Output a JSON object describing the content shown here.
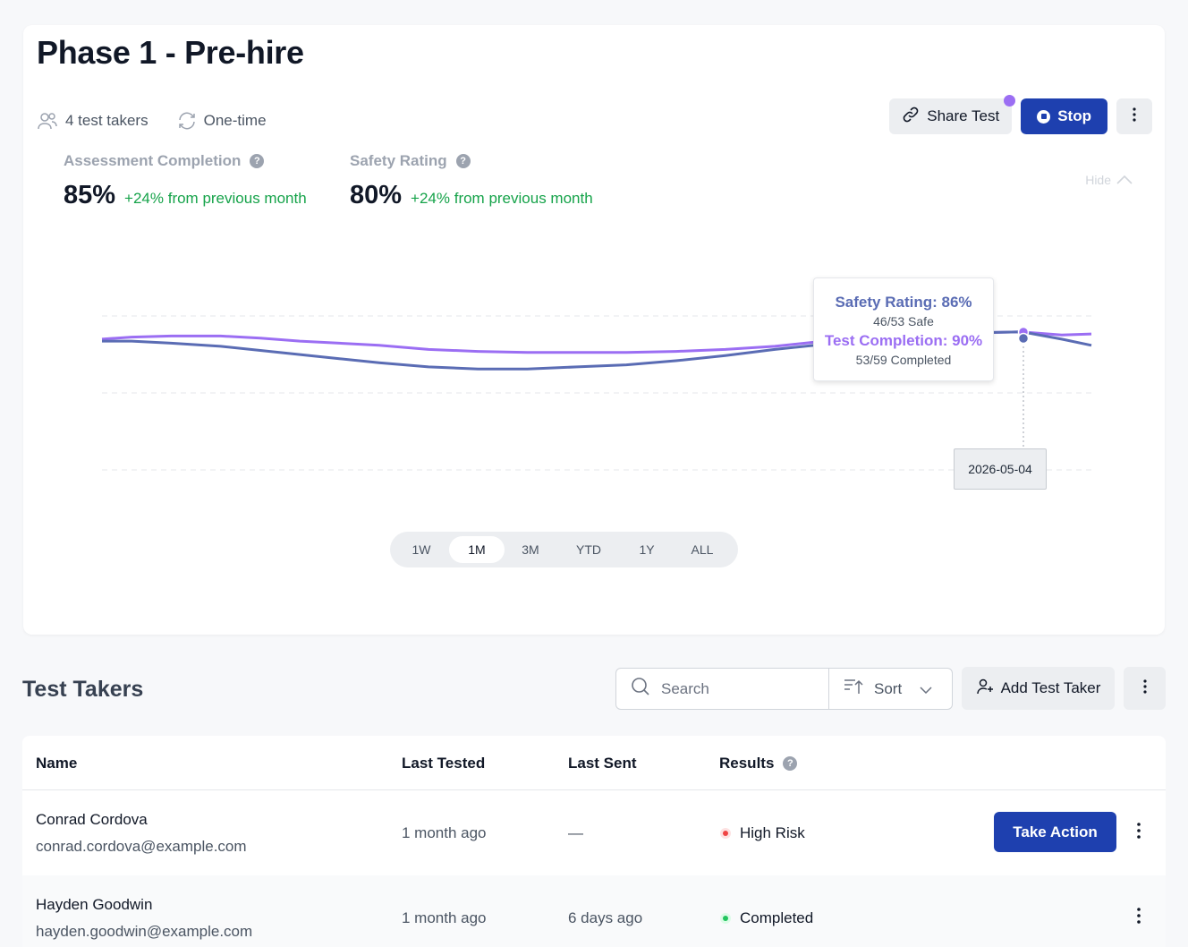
{
  "header": {
    "title": "Phase 1 - Pre-hire",
    "test_takers": "4 test takers",
    "frequency": "One-time"
  },
  "actions": {
    "share_label": "Share Test",
    "stop_label": "Stop"
  },
  "stats": [
    {
      "label": "Assessment Completion",
      "value": "85%",
      "change": "+24% from previous month"
    },
    {
      "label": "Safety Rating",
      "value": "80%",
      "change": "+24% from previous month"
    }
  ],
  "hide_label": "Hide",
  "colors": {
    "safety": "#5a6cb4",
    "completion": "#9b6ef3",
    "primary": "#1e40af",
    "positive": "#16a34a",
    "risk": "#ef4444",
    "done": "#22c55e"
  },
  "chart_data": {
    "type": "line",
    "grid": true,
    "x_range": [
      "2026-04-04",
      "2026-05-07"
    ],
    "series": [
      {
        "key": "completion",
        "values": [
          [
            0,
            89.6
          ],
          [
            3,
            89.8
          ],
          [
            7,
            89.9
          ],
          [
            12,
            89.9
          ],
          [
            16,
            89.7
          ],
          [
            20,
            89.4
          ],
          [
            24,
            89.2
          ],
          [
            28,
            89.0
          ],
          [
            33,
            88.6
          ],
          [
            38,
            88.4
          ],
          [
            43,
            88.3
          ],
          [
            48,
            88.3
          ],
          [
            53,
            88.3
          ],
          [
            58,
            88.4
          ],
          [
            63,
            88.6
          ],
          [
            68,
            88.9
          ],
          [
            73,
            89.4
          ],
          [
            78,
            89.8
          ],
          [
            83,
            90.1
          ],
          [
            88,
            90.2
          ],
          [
            93,
            90.3
          ],
          [
            97,
            90.0
          ],
          [
            100,
            90.1
          ]
        ]
      },
      {
        "key": "safety",
        "values": [
          [
            0,
            89.4
          ],
          [
            3,
            89.4
          ],
          [
            7,
            89.2
          ],
          [
            12,
            88.9
          ],
          [
            16,
            88.5
          ],
          [
            20,
            88.1
          ],
          [
            24,
            87.7
          ],
          [
            28,
            87.3
          ],
          [
            33,
            86.9
          ],
          [
            38,
            86.7
          ],
          [
            43,
            86.7
          ],
          [
            48,
            86.9
          ],
          [
            53,
            87.1
          ],
          [
            58,
            87.5
          ],
          [
            63,
            88.0
          ],
          [
            68,
            88.6
          ],
          [
            73,
            89.1
          ],
          [
            78,
            89.6
          ],
          [
            83,
            90.0
          ],
          [
            88,
            90.2
          ],
          [
            93,
            90.3
          ],
          [
            97,
            89.6
          ],
          [
            100,
            89.0
          ]
        ]
      }
    ],
    "tooltip": {
      "date": "2026-05-04",
      "safety_label": "Safety Rating: 86%",
      "safety_detail": "46/53 Safe",
      "completion_label": "Test Completion: 90%",
      "completion_detail": "53/59 Completed"
    }
  },
  "ranges": {
    "items": [
      "1W",
      "1M",
      "3M",
      "YTD",
      "1Y",
      "ALL"
    ],
    "active": "1M"
  },
  "list": {
    "title": "Test Takers",
    "search_placeholder": "Search",
    "sort_label": "Sort",
    "add_label": "Add Test Taker"
  },
  "table": {
    "columns": [
      "Name",
      "Last Tested",
      "Last Sent",
      "Results"
    ],
    "rows": [
      {
        "name": "Conrad Cordova",
        "email": "conrad.cordova@example.com",
        "last_tested": "1 month ago",
        "last_sent": "—",
        "result": "High Risk",
        "status": "risk",
        "action": "Take Action"
      },
      {
        "name": "Hayden Goodwin",
        "email": "hayden.goodwin@example.com",
        "last_tested": "1 month ago",
        "last_sent": "6 days ago",
        "result": "Completed",
        "status": "done"
      }
    ]
  }
}
